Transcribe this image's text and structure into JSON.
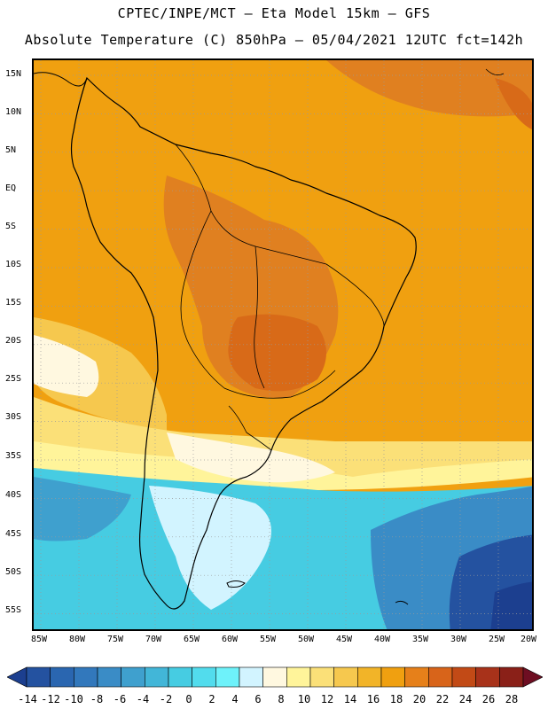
{
  "header": {
    "line1": "CPTEC/INPE/MCT –  Eta Model 15km – GFS",
    "line2": "Absolute Temperature (C) 850hPa – 05/04/2021 12UTC fct=142h"
  },
  "map": {
    "region": "South America",
    "lat_labels": [
      "15N",
      "10N",
      "5N",
      "EQ",
      "5S",
      "10S",
      "15S",
      "20S",
      "25S",
      "30S",
      "35S",
      "40S",
      "45S",
      "50S",
      "55S"
    ],
    "lon_labels": [
      "85W",
      "80W",
      "75W",
      "70W",
      "65W",
      "60W",
      "55W",
      "50W",
      "45W",
      "40W",
      "35W",
      "30W",
      "25W",
      "20W"
    ],
    "colors": {
      "warm_orange": "#f0a010",
      "hot_orange": "#e08020",
      "very_hot": "#d86a18",
      "light_yellow": "#fff0a0",
      "cream": "#fff8e0",
      "light_cyan": "#d8f4fa",
      "cyan": "#40d4e8",
      "blue": "#2080c0",
      "dark_blue": "#183f98"
    }
  },
  "colorbar": {
    "labels": [
      "-14",
      "-12",
      "-10",
      "-8",
      "-6",
      "-4",
      "-2",
      "0",
      "2",
      "4",
      "6",
      "8",
      "10",
      "12",
      "14",
      "16",
      "18",
      "20",
      "22",
      "24",
      "26",
      "28"
    ],
    "colors": [
      "#1c3f8f",
      "#2452a0",
      "#2a66b0",
      "#3278bc",
      "#3a8cc6",
      "#3fa0ce",
      "#42b6d8",
      "#46cce2",
      "#52dced",
      "#6ef2fa",
      "#d2f4ff",
      "#fff8e0",
      "#fff49a",
      "#fbe078",
      "#f6c84e",
      "#f2b428",
      "#f0a010",
      "#e6801a",
      "#d8641a",
      "#c24a16",
      "#a8321a",
      "#8a2018",
      "#6e0e22"
    ]
  }
}
